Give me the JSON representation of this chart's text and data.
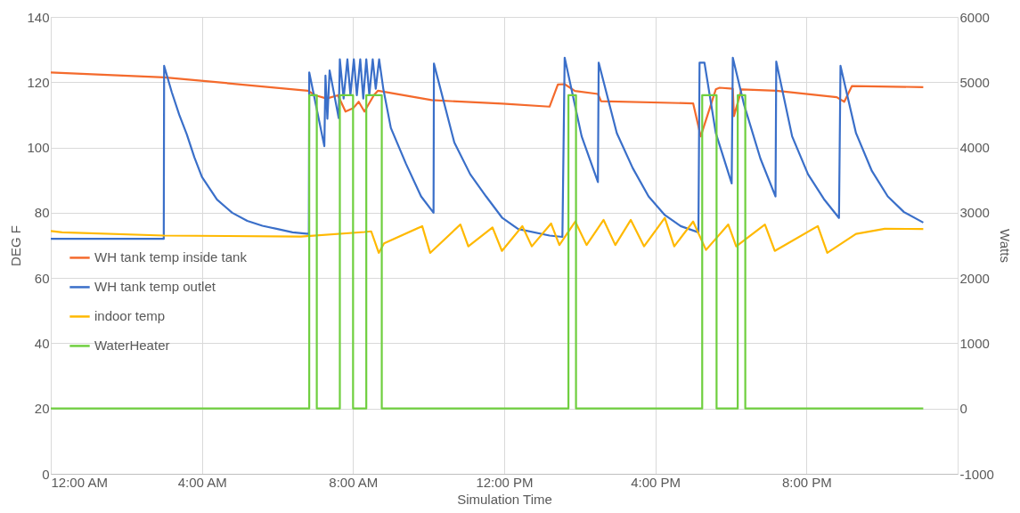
{
  "chart_data": {
    "type": "line",
    "xlabel": "Simulation Time",
    "ylabel": "DEG F",
    "y2label": "Watts",
    "xlim": [
      0,
      24
    ],
    "xticks": [
      {
        "value": 0,
        "label": "12:00 AM"
      },
      {
        "value": 4,
        "label": "4:00 AM"
      },
      {
        "value": 8,
        "label": "8:00 AM"
      },
      {
        "value": 12,
        "label": "12:00 PM"
      },
      {
        "value": 16,
        "label": "4:00 PM"
      },
      {
        "value": 20,
        "label": "8:00 PM"
      }
    ],
    "ylim": [
      0,
      140
    ],
    "yticks": [
      0,
      20,
      40,
      60,
      80,
      100,
      120,
      140
    ],
    "y2lim": [
      -1000,
      6000
    ],
    "y2ticks": [
      -1000,
      0,
      1000,
      2000,
      3000,
      4000,
      5000,
      6000
    ],
    "grid": true,
    "legend": "left",
    "series": [
      {
        "name": "WH tank temp inside tank",
        "color": "#f46a2c",
        "x": [
          0,
          3,
          6.8,
          7.0,
          7.3,
          7.6,
          7.8,
          8.0,
          8.15,
          8.3,
          8.55,
          8.66,
          10.08,
          11.95,
          13.2,
          13.42,
          13.6,
          13.87,
          14.48,
          14.56,
          17.0,
          17.2,
          17.6,
          17.7,
          18.05,
          18.08,
          18.28,
          19.2,
          20.8,
          21.0,
          21.2,
          23.09
        ],
        "values": [
          123,
          121.5,
          117.4,
          116,
          115,
          116,
          111,
          112,
          114,
          111,
          116,
          117.4,
          114.5,
          113.4,
          112.5,
          119.3,
          119.4,
          117.3,
          116.4,
          114.2,
          113.5,
          103.4,
          117.8,
          118.3,
          118,
          109.6,
          117.8,
          117.4,
          115.4,
          114,
          118.8,
          118.5
        ]
      },
      {
        "name": "WH tank temp outlet",
        "color": "#3a6fc9",
        "x": [
          0,
          2.99,
          3.0,
          3.2,
          3.4,
          3.6,
          3.8,
          4.0,
          4.4,
          4.8,
          5.2,
          5.6,
          6.0,
          6.4,
          6.83,
          6.84,
          7.24,
          7.27,
          7.32,
          7.38,
          7.62,
          7.65,
          7.75,
          7.85,
          7.93,
          8.02,
          8.1,
          8.19,
          8.27,
          8.35,
          8.43,
          8.52,
          8.6,
          8.69,
          8.8,
          9.0,
          9.4,
          9.8,
          10.13,
          10.14,
          10.68,
          11.1,
          11.52,
          11.95,
          12.37,
          13.2,
          13.54,
          13.6,
          14.05,
          14.48,
          14.5,
          14.98,
          15.4,
          15.82,
          16.25,
          16.67,
          17.14,
          17.17,
          17.3,
          17.6,
          18.02,
          18.05,
          18.35,
          18.78,
          19.18,
          19.2,
          19.62,
          20.04,
          20.46,
          20.86,
          20.9,
          21.31,
          21.73,
          22.15,
          22.58,
          23.09
        ],
        "values": [
          72,
          72,
          125,
          117,
          110,
          104,
          97,
          91,
          84,
          80,
          77.5,
          76,
          75,
          74,
          73.5,
          123,
          100.4,
          122,
          108.8,
          123.6,
          109,
          127,
          115,
          127,
          116,
          127,
          116,
          127,
          115,
          127,
          116,
          127,
          118,
          127,
          118,
          106,
          95,
          85,
          80,
          125.7,
          101.5,
          91.8,
          85,
          78.4,
          75,
          73,
          72.6,
          127.5,
          103.4,
          89.4,
          126,
          104.4,
          93.7,
          85,
          79.3,
          75.9,
          74,
          126,
          126,
          104.4,
          89,
          127.5,
          113,
          96.6,
          85,
          126.3,
          103.4,
          91.8,
          84.2,
          78.4,
          125,
          104.4,
          92.8,
          85,
          80.2,
          77
        ]
      },
      {
        "name": "indoor temp",
        "color": "#ffb900",
        "x": [
          0,
          0.3,
          3.0,
          6.62,
          8.3,
          8.48,
          8.68,
          8.82,
          9.83,
          10.04,
          10.84,
          11.05,
          11.69,
          11.94,
          12.48,
          12.73,
          13.24,
          13.46,
          13.88,
          14.18,
          14.63,
          14.94,
          15.35,
          15.7,
          16.25,
          16.5,
          17.0,
          17.34,
          17.93,
          18.14,
          18.9,
          19.16,
          20.3,
          20.55,
          21.31,
          22.07,
          23.09
        ],
        "values": [
          74.4,
          74,
          73,
          72.7,
          74.1,
          74.3,
          67.7,
          70.6,
          75.9,
          67.7,
          76.4,
          69.7,
          75.5,
          68.3,
          75.9,
          69.7,
          76.7,
          70.1,
          77.3,
          70.1,
          77.8,
          70.1,
          77.8,
          69.7,
          78.4,
          69.7,
          77.3,
          68.6,
          76.4,
          69.7,
          76.4,
          68.3,
          75.9,
          67.7,
          73.5,
          75.1,
          75.0
        ]
      },
      {
        "name": "WaterHeater",
        "color": "#6fcf3f",
        "type": "step",
        "axis": "y2",
        "x": [
          0,
          6.84,
          7.04,
          7.65,
          8.0,
          8.35,
          8.76,
          13.7,
          13.9,
          17.24,
          17.62,
          18.18,
          18.38,
          23.09
        ],
        "values": [
          0,
          4800,
          0,
          4800,
          0,
          4800,
          0,
          4800,
          0,
          4800,
          0,
          4800,
          0,
          0
        ]
      }
    ]
  }
}
